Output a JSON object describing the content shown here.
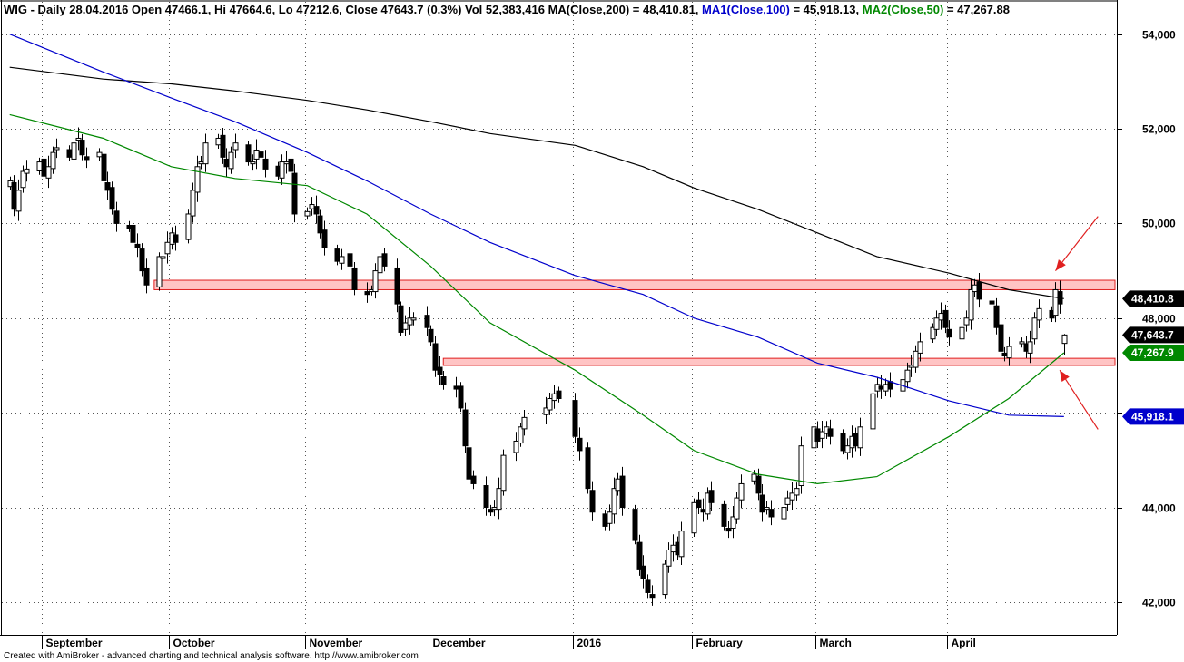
{
  "header": {
    "symbol": "WIG",
    "info": " - Daily 28.04.2016 Open 47466.1, Hi 47664.6, Lo 47212.6, Close 47643.7 (0.3%) Vol 52,383,416",
    "ma200_text": "MA(Close,200) = 48,410.81,",
    "ma100_label": "MA1(Close,100)",
    "ma100_value": " = 45,918.13,",
    "ma50_label": "MA2(Close,50)",
    "ma50_value": " = 47,267.88"
  },
  "footer": "Created with AmiBroker - advanced charting and technical analysis software. http://www.amibroker.com",
  "colors": {
    "ma200": "#000000",
    "ma100": "#0000cc",
    "ma50": "#008800",
    "zone_fill": "#ffc4c4",
    "zone_stroke": "#e02020",
    "arrow": "#e02020"
  },
  "chart_data": {
    "type": "candlestick",
    "title": "WIG - Daily 28.04.2016",
    "ylim": [
      41500,
      54300
    ],
    "y_ticks": [
      {
        "value": 42000,
        "label": "42,000"
      },
      {
        "value": 44000,
        "label": "44,000"
      },
      {
        "value": 46000,
        "label": "46,000"
      },
      {
        "value": 48000,
        "label": "48,000"
      },
      {
        "value": 50000,
        "label": "50,000"
      },
      {
        "value": 52000,
        "label": "52,000"
      },
      {
        "value": 54000,
        "label": "54,000"
      }
    ],
    "x_ticks": [
      {
        "label": "September",
        "date": "2015-09-01"
      },
      {
        "label": "October",
        "date": "2015-10-01"
      },
      {
        "label": "November",
        "date": "2015-11-02"
      },
      {
        "label": "December",
        "date": "2015-12-01"
      },
      {
        "label": "2016",
        "date": "2016-01-04"
      },
      {
        "label": "February",
        "date": "2016-02-01"
      },
      {
        "label": "March",
        "date": "2016-03-01"
      },
      {
        "label": "April",
        "date": "2016-04-01"
      }
    ],
    "last_bar": {
      "date": "2016-04-28",
      "open": 47466.1,
      "high": 47664.6,
      "low": 47212.6,
      "close": 47643.7,
      "change_pct": 0.3,
      "volume": 52383416
    },
    "price_path": [
      [
        "2015-08-24",
        50900
      ],
      [
        "2015-08-25",
        50300
      ],
      [
        "2015-08-26",
        50700
      ],
      [
        "2015-08-27",
        51100
      ],
      [
        "2015-08-28",
        51150
      ],
      [
        "2015-08-31",
        51300
      ],
      [
        "2015-09-01",
        51000
      ],
      [
        "2015-09-02",
        51200
      ],
      [
        "2015-09-03",
        51500
      ],
      [
        "2015-09-04",
        51600
      ],
      [
        "2015-09-07",
        51400
      ],
      [
        "2015-09-08",
        51700
      ],
      [
        "2015-09-09",
        51800
      ],
      [
        "2015-09-10",
        51450
      ],
      [
        "2015-09-11",
        51350
      ],
      [
        "2015-09-14",
        51500
      ],
      [
        "2015-09-15",
        50900
      ],
      [
        "2015-09-16",
        50700
      ],
      [
        "2015-09-17",
        50300
      ],
      [
        "2015-09-18",
        50000
      ],
      [
        "2015-09-21",
        49900
      ],
      [
        "2015-09-22",
        49600
      ],
      [
        "2015-09-23",
        49500
      ],
      [
        "2015-09-24",
        49000
      ],
      [
        "2015-09-25",
        48700
      ],
      [
        "2015-09-28",
        49300
      ],
      [
        "2015-09-29",
        49300
      ],
      [
        "2015-09-30",
        49600
      ],
      [
        "2015-10-01",
        49800
      ],
      [
        "2015-10-02",
        49600
      ],
      [
        "2015-10-05",
        50200
      ],
      [
        "2015-10-06",
        50700
      ],
      [
        "2015-10-07",
        51200
      ],
      [
        "2015-10-08",
        51300
      ],
      [
        "2015-10-09",
        51700
      ],
      [
        "2015-10-12",
        51800
      ],
      [
        "2015-10-13",
        51400
      ],
      [
        "2015-10-14",
        51200
      ],
      [
        "2015-10-15",
        51500
      ],
      [
        "2015-10-16",
        51700
      ],
      [
        "2015-10-19",
        51300
      ],
      [
        "2015-10-20",
        51300
      ],
      [
        "2015-10-21",
        51550
      ],
      [
        "2015-10-22",
        51400
      ],
      [
        "2015-10-23",
        51150
      ],
      [
        "2015-10-26",
        51000
      ],
      [
        "2015-10-27",
        51300
      ],
      [
        "2015-10-28",
        51300
      ],
      [
        "2015-10-29",
        51100
      ],
      [
        "2015-10-30",
        50200
      ],
      [
        "2015-11-02",
        50250
      ],
      [
        "2015-11-03",
        50400
      ],
      [
        "2015-11-04",
        50200
      ],
      [
        "2015-11-05",
        49800
      ],
      [
        "2015-11-06",
        49500
      ],
      [
        "2015-11-09",
        49200
      ],
      [
        "2015-11-10",
        49300
      ],
      [
        "2015-11-12",
        49100
      ],
      [
        "2015-11-13",
        48600
      ],
      [
        "2015-11-16",
        48500
      ],
      [
        "2015-11-17",
        48600
      ],
      [
        "2015-11-18",
        49000
      ],
      [
        "2015-11-19",
        49300
      ],
      [
        "2015-11-20",
        49100
      ],
      [
        "2015-11-23",
        48300
      ],
      [
        "2015-11-24",
        47700
      ],
      [
        "2015-11-25",
        47900
      ],
      [
        "2015-11-26",
        48000
      ],
      [
        "2015-11-27",
        48000
      ],
      [
        "2015-11-30",
        47800
      ],
      [
        "2015-12-01",
        47500
      ],
      [
        "2015-12-02",
        46900
      ],
      [
        "2015-12-03",
        46800
      ],
      [
        "2015-12-04",
        46600
      ],
      [
        "2015-12-07",
        46500
      ],
      [
        "2015-12-08",
        46100
      ],
      [
        "2015-12-09",
        45300
      ],
      [
        "2015-12-10",
        44600
      ],
      [
        "2015-12-11",
        44500
      ],
      [
        "2015-12-14",
        44000
      ],
      [
        "2015-12-15",
        43900
      ],
      [
        "2015-12-16",
        44000
      ],
      [
        "2015-12-17",
        44400
      ],
      [
        "2015-12-18",
        45100
      ],
      [
        "2015-12-21",
        45400
      ],
      [
        "2015-12-22",
        45700
      ],
      [
        "2015-12-23",
        45900
      ],
      [
        "2015-12-28",
        46100
      ],
      [
        "2015-12-29",
        46300
      ],
      [
        "2015-12-30",
        46400
      ],
      [
        "2015-12-31",
        46300
      ],
      [
        "2016-01-04",
        45500
      ],
      [
        "2016-01-05",
        45200
      ],
      [
        "2016-01-07",
        44400
      ],
      [
        "2016-01-08",
        43900
      ],
      [
        "2016-01-11",
        43600
      ],
      [
        "2016-01-12",
        43900
      ],
      [
        "2016-01-13",
        44400
      ],
      [
        "2016-01-14",
        44600
      ],
      [
        "2016-01-15",
        44000
      ],
      [
        "2016-01-18",
        43300
      ],
      [
        "2016-01-19",
        42700
      ],
      [
        "2016-01-20",
        42500
      ],
      [
        "2016-01-21",
        42200
      ],
      [
        "2016-01-22",
        42100
      ],
      [
        "2016-01-25",
        42800
      ],
      [
        "2016-01-26",
        43100
      ],
      [
        "2016-01-27",
        43200
      ],
      [
        "2016-01-28",
        43000
      ],
      [
        "2016-01-29",
        43500
      ],
      [
        "2016-02-01",
        44100
      ],
      [
        "2016-02-02",
        44000
      ],
      [
        "2016-02-03",
        43900
      ],
      [
        "2016-02-04",
        44300
      ],
      [
        "2016-02-05",
        44100
      ],
      [
        "2016-02-08",
        43600
      ],
      [
        "2016-02-09",
        43500
      ],
      [
        "2016-02-10",
        43800
      ],
      [
        "2016-02-11",
        44200
      ],
      [
        "2016-02-12",
        44500
      ],
      [
        "2016-02-15",
        44700
      ],
      [
        "2016-02-16",
        44300
      ],
      [
        "2016-02-17",
        43900
      ],
      [
        "2016-02-18",
        44000
      ],
      [
        "2016-02-19",
        43800
      ],
      [
        "2016-02-22",
        44000
      ],
      [
        "2016-02-23",
        44200
      ],
      [
        "2016-02-24",
        44300
      ],
      [
        "2016-02-25",
        44400
      ],
      [
        "2016-02-26",
        45300
      ],
      [
        "2016-02-29",
        45700
      ],
      [
        "2016-03-01",
        45400
      ],
      [
        "2016-03-02",
        45600
      ],
      [
        "2016-03-03",
        45700
      ],
      [
        "2016-03-04",
        45500
      ],
      [
        "2016-03-07",
        45200
      ],
      [
        "2016-03-08",
        45300
      ],
      [
        "2016-03-09",
        45500
      ],
      [
        "2016-03-10",
        45300
      ],
      [
        "2016-03-11",
        45700
      ],
      [
        "2016-03-14",
        46400
      ],
      [
        "2016-03-15",
        46600
      ],
      [
        "2016-03-16",
        46500
      ],
      [
        "2016-03-17",
        46600
      ],
      [
        "2016-03-18",
        46500
      ],
      [
        "2016-03-21",
        46700
      ],
      [
        "2016-03-22",
        46900
      ],
      [
        "2016-03-23",
        47000
      ],
      [
        "2016-03-24",
        47300
      ],
      [
        "2016-03-25",
        47500
      ],
      [
        "2016-03-28",
        47800
      ],
      [
        "2016-03-29",
        48000
      ],
      [
        "2016-03-30",
        48100
      ],
      [
        "2016-03-31",
        47800
      ],
      [
        "2016-04-01",
        47600
      ],
      [
        "2016-04-04",
        47800
      ],
      [
        "2016-04-05",
        48000
      ],
      [
        "2016-04-06",
        48600
      ],
      [
        "2016-04-07",
        48700
      ],
      [
        "2016-04-08",
        48400
      ],
      [
        "2016-04-11",
        48300
      ],
      [
        "2016-04-12",
        47800
      ],
      [
        "2016-04-13",
        47300
      ],
      [
        "2016-04-14",
        47200
      ],
      [
        "2016-04-15",
        47400
      ],
      [
        "2016-04-18",
        47500
      ],
      [
        "2016-04-19",
        47300
      ],
      [
        "2016-04-20",
        47500
      ],
      [
        "2016-04-21",
        48000
      ],
      [
        "2016-04-22",
        48200
      ],
      [
        "2016-04-25",
        48000
      ],
      [
        "2016-04-26",
        48600
      ],
      [
        "2016-04-27",
        48300
      ],
      [
        "2016-04-28",
        47643.7
      ]
    ],
    "series": [
      {
        "name": "MA(Close,200)",
        "color": "#000000",
        "last_value": 48410.81,
        "points": [
          [
            "2015-08-24",
            53300
          ],
          [
            "2015-09-15",
            53050
          ],
          [
            "2015-10-01",
            52950
          ],
          [
            "2015-10-16",
            52800
          ],
          [
            "2015-11-02",
            52600
          ],
          [
            "2015-11-16",
            52400
          ],
          [
            "2015-12-01",
            52150
          ],
          [
            "2015-12-15",
            51900
          ],
          [
            "2016-01-04",
            51650
          ],
          [
            "2016-01-20",
            51200
          ],
          [
            "2016-02-01",
            50750
          ],
          [
            "2016-02-16",
            50300
          ],
          [
            "2016-03-01",
            49800
          ],
          [
            "2016-03-15",
            49300
          ],
          [
            "2016-04-01",
            48950
          ],
          [
            "2016-04-15",
            48600
          ],
          [
            "2016-04-28",
            48410.81
          ]
        ]
      },
      {
        "name": "MA1(Close,100)",
        "color": "#0000cc",
        "last_value": 45918.13,
        "points": [
          [
            "2015-08-24",
            54000
          ],
          [
            "2015-09-15",
            53200
          ],
          [
            "2015-10-01",
            52650
          ],
          [
            "2015-10-16",
            52150
          ],
          [
            "2015-11-02",
            51500
          ],
          [
            "2015-11-16",
            50900
          ],
          [
            "2015-12-01",
            50200
          ],
          [
            "2015-12-15",
            49600
          ],
          [
            "2016-01-04",
            48900
          ],
          [
            "2016-01-20",
            48500
          ],
          [
            "2016-02-01",
            48000
          ],
          [
            "2016-02-16",
            47600
          ],
          [
            "2016-03-01",
            47050
          ],
          [
            "2016-03-15",
            46750
          ],
          [
            "2016-04-01",
            46250
          ],
          [
            "2016-04-15",
            45950
          ],
          [
            "2016-04-28",
            45918.13
          ]
        ]
      },
      {
        "name": "MA2(Close,50)",
        "color": "#008800",
        "last_value": 47267.88,
        "points": [
          [
            "2015-08-24",
            52300
          ],
          [
            "2015-09-15",
            51800
          ],
          [
            "2015-10-01",
            51200
          ],
          [
            "2015-10-16",
            50950
          ],
          [
            "2015-11-02",
            50800
          ],
          [
            "2015-11-16",
            50200
          ],
          [
            "2015-12-01",
            49100
          ],
          [
            "2015-12-15",
            47900
          ],
          [
            "2016-01-04",
            46900
          ],
          [
            "2016-01-20",
            45950
          ],
          [
            "2016-02-01",
            45200
          ],
          [
            "2016-02-16",
            44700
          ],
          [
            "2016-03-01",
            44500
          ],
          [
            "2016-03-15",
            44650
          ],
          [
            "2016-04-01",
            45500
          ],
          [
            "2016-04-15",
            46300
          ],
          [
            "2016-04-28",
            47267.88
          ]
        ]
      }
    ],
    "value_tags": [
      {
        "label": "48,410.8",
        "value": 48410.81,
        "color": "#000000"
      },
      {
        "label": "47,643.7",
        "value": 47643.7,
        "color": "#000000"
      },
      {
        "label": "47,267.9",
        "value": 47267.88,
        "color": "#008800"
      },
      {
        "label": "45,918.1",
        "value": 45918.13,
        "color": "#0000cc"
      }
    ],
    "zones": [
      {
        "from_date": "2015-09-27",
        "to_date": "2016-05-10",
        "low": 48600,
        "high": 48800
      },
      {
        "from_date": "2015-12-04",
        "to_date": "2016-05-10",
        "low": 47000,
        "high": 47150
      }
    ],
    "arrows": [
      {
        "from": [
          "2016-05-06",
          50150
        ],
        "to": [
          "2016-04-26",
          49000
        ]
      },
      {
        "from": [
          "2016-05-06",
          45650
        ],
        "to": [
          "2016-04-27",
          46900
        ]
      }
    ]
  }
}
